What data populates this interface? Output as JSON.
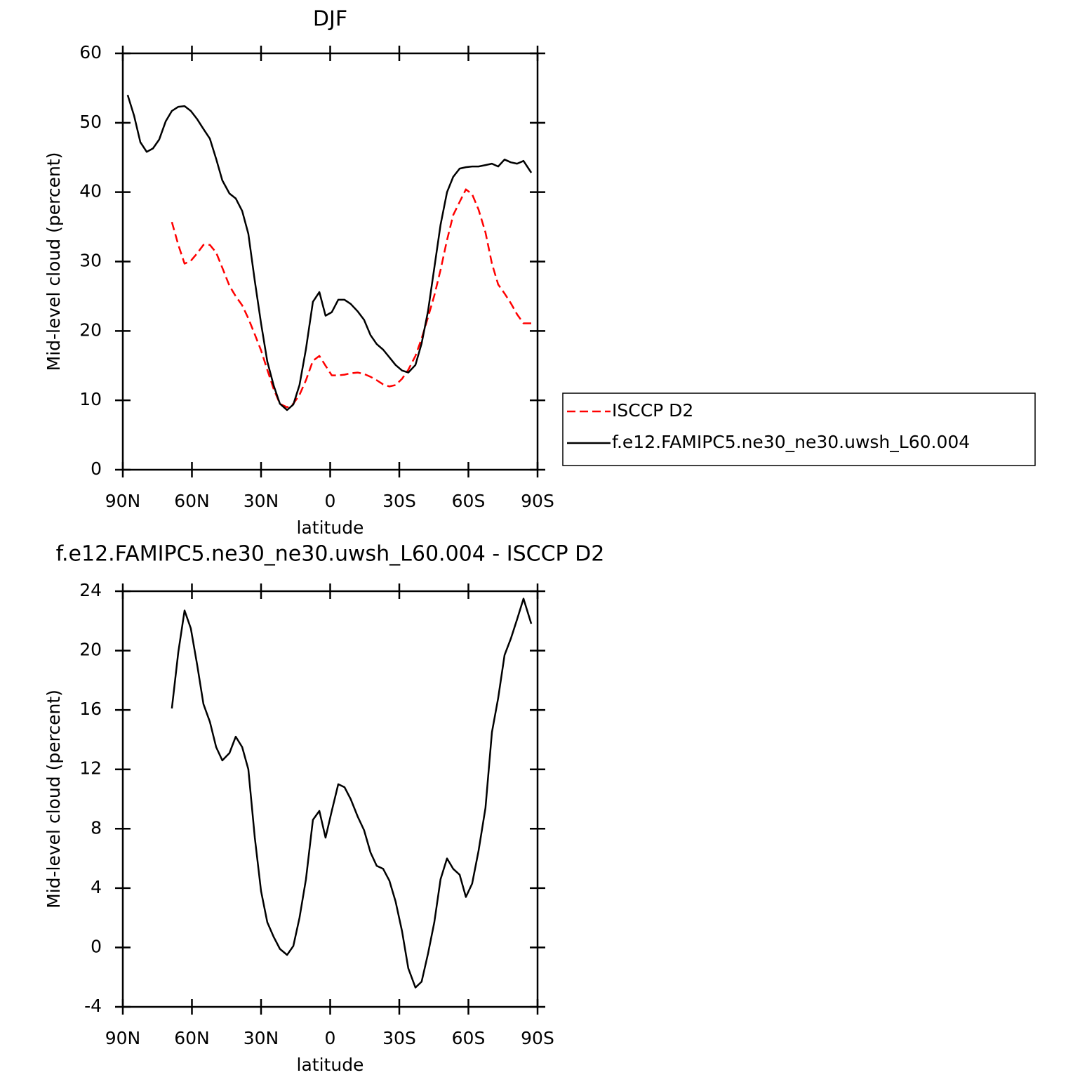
{
  "chart_data": [
    {
      "type": "line",
      "title": "DJF",
      "x_label": "latitude",
      "y_label": "Mid-level cloud (percent)",
      "xlim": [
        90,
        -90
      ],
      "ylim": [
        0,
        60
      ],
      "xticks": [
        {
          "value": 90,
          "label": "90N"
        },
        {
          "value": 60,
          "label": "60N"
        },
        {
          "value": 30,
          "label": "30N"
        },
        0,
        {
          "value": -30,
          "label": "30S"
        },
        {
          "value": -60,
          "label": "60S"
        },
        {
          "value": -90,
          "label": "90S"
        }
      ],
      "yticks": [
        0,
        10,
        20,
        30,
        40,
        50,
        60
      ],
      "legend": "right",
      "x": [
        87.9,
        85.1,
        82.4,
        79.6,
        76.9,
        74.2,
        71.4,
        68.7,
        65.9,
        63.2,
        60.5,
        57.7,
        55.0,
        52.2,
        49.5,
        46.8,
        43.7,
        41.0,
        38.2,
        35.5,
        32.7,
        30.0,
        27.3,
        24.5,
        21.8,
        18.7,
        16.0,
        13.3,
        10.5,
        7.5,
        4.7,
        2.0,
        -0.7,
        -3.5,
        -6.2,
        -8.9,
        -12.0,
        -14.7,
        -17.5,
        -20.2,
        -23.0,
        -25.7,
        -28.4,
        -31.2,
        -33.9,
        -37.0,
        -39.7,
        -42.5,
        -45.2,
        -47.9,
        -50.7,
        -53.4,
        -56.2,
        -58.9,
        -61.6,
        -64.4,
        -67.4,
        -70.2,
        -72.9,
        -75.7,
        -78.4,
        -81.1,
        -83.9,
        -87.3
      ],
      "series": [
        {
          "name": "ISCCP D2",
          "color": "#ff0000",
          "dashed": true,
          "values": [
            null,
            null,
            null,
            null,
            null,
            null,
            null,
            35.7,
            32.4,
            29.7,
            30.1,
            31.2,
            32.4,
            32.4,
            31.3,
            29.1,
            26.5,
            25.0,
            23.7,
            21.8,
            19.5,
            17.2,
            14.4,
            11.6,
            9.5,
            9.0,
            9.5,
            10.8,
            12.9,
            15.7,
            16.4,
            15.0,
            13.6,
            13.6,
            13.7,
            13.9,
            14.0,
            13.8,
            13.4,
            12.9,
            12.3,
            12.0,
            12.2,
            13.1,
            14.4,
            16.4,
            18.9,
            22.0,
            25.1,
            28.8,
            33.1,
            36.7,
            38.6,
            40.4,
            39.7,
            37.5,
            34.2,
            29.7,
            26.7,
            25.4,
            24.0,
            22.4,
            21.1,
            21.1
          ]
        },
        {
          "name": "f.e12.FAMIPC5.ne30_ne30.uwsh_L60.004",
          "color": "#000000",
          "dashed": false,
          "values": [
            54.0,
            51.0,
            47.2,
            45.8,
            46.3,
            47.6,
            50.2,
            51.7,
            52.3,
            52.4,
            51.7,
            50.5,
            49.1,
            47.7,
            44.8,
            41.7,
            39.8,
            39.1,
            37.3,
            34.0,
            27.2,
            21.1,
            15.6,
            12.1,
            9.5,
            8.6,
            9.4,
            12.2,
            17.4,
            24.2,
            25.6,
            22.2,
            22.7,
            24.5,
            24.5,
            23.9,
            22.8,
            21.6,
            19.4,
            18.1,
            17.3,
            16.2,
            15.1,
            14.3,
            14.0,
            15.1,
            18.2,
            22.9,
            29.1,
            35.3,
            40.0,
            42.2,
            43.4,
            43.6,
            43.7,
            43.7,
            43.9,
            44.1,
            43.7,
            44.7,
            44.3,
            44.1,
            44.5,
            42.8
          ]
        }
      ]
    },
    {
      "type": "line",
      "title": "f.e12.FAMIPC5.ne30_ne30.uwsh_L60.004 - ISCCP D2",
      "x_label": "latitude",
      "y_label": "Mid-level cloud (percent)",
      "xlim": [
        90,
        -90
      ],
      "ylim": [
        -4,
        24
      ],
      "xticks": [
        {
          "value": 90,
          "label": "90N"
        },
        {
          "value": 60,
          "label": "60N"
        },
        {
          "value": 30,
          "label": "30N"
        },
        0,
        {
          "value": -30,
          "label": "30S"
        },
        {
          "value": -60,
          "label": "60S"
        },
        {
          "value": -90,
          "label": "90S"
        }
      ],
      "yticks": [
        -4,
        0,
        4,
        8,
        12,
        16,
        20,
        24
      ],
      "color": "#000000",
      "x": [
        68.7,
        65.9,
        63.2,
        60.5,
        57.7,
        55.0,
        52.2,
        49.5,
        46.8,
        43.7,
        41.0,
        38.2,
        35.5,
        32.7,
        30.0,
        27.3,
        24.5,
        21.8,
        18.7,
        16.0,
        13.3,
        10.5,
        7.5,
        4.7,
        2.0,
        -0.7,
        -3.5,
        -6.2,
        -8.9,
        -12.0,
        -14.7,
        -17.5,
        -20.2,
        -23.0,
        -25.7,
        -28.4,
        -31.2,
        -33.9,
        -37.0,
        -39.7,
        -42.5,
        -45.2,
        -47.9,
        -50.7,
        -53.4,
        -56.2,
        -58.9,
        -61.6,
        -64.4,
        -67.4,
        -70.2,
        -72.9,
        -75.7,
        -78.4,
        -81.1,
        -83.9,
        -87.3
      ],
      "values": [
        16.1,
        19.9,
        22.7,
        21.5,
        19.0,
        16.4,
        15.2,
        13.5,
        12.6,
        13.1,
        14.2,
        13.5,
        12.0,
        7.4,
        3.8,
        1.7,
        0.7,
        -0.1,
        -0.5,
        0.1,
        2.0,
        4.6,
        8.6,
        9.2,
        7.4,
        9.2,
        11.0,
        10.8,
        10.0,
        8.8,
        7.9,
        6.4,
        5.5,
        5.3,
        4.5,
        3.1,
        1.1,
        -1.4,
        -2.7,
        -2.3,
        -0.4,
        1.7,
        4.6,
        6.0,
        5.3,
        4.9,
        3.4,
        4.3,
        6.5,
        9.4,
        14.5,
        16.8,
        19.7,
        20.8,
        22.1,
        23.5,
        21.8
      ]
    }
  ]
}
